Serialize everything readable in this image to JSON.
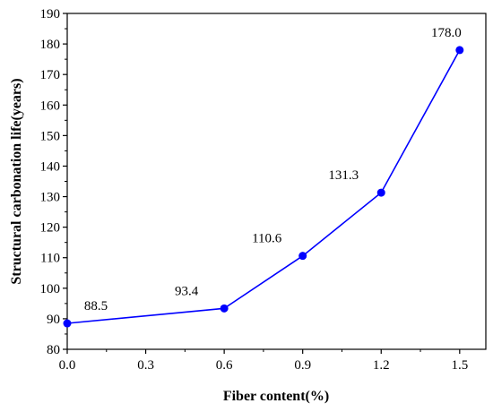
{
  "chart_data": {
    "type": "line",
    "title": "",
    "xlabel": "Fiber content(%)",
    "ylabel": "Structural carbonation life(years)",
    "x": [
      0.0,
      0.6,
      0.9,
      1.2,
      1.5
    ],
    "series": [
      {
        "values": [
          88.5,
          93.4,
          110.6,
          131.3,
          178.0
        ],
        "labels": [
          "88.5",
          "93.4",
          "110.6",
          "131.3",
          "178.0"
        ],
        "color": "#0000ff"
      }
    ],
    "xlim": [
      0.0,
      1.6
    ],
    "ylim": [
      80,
      190
    ],
    "xticks": [
      0.0,
      0.3,
      0.6,
      0.9,
      1.2,
      1.5
    ],
    "xtick_labels": [
      "0.0",
      "0.3",
      "0.6",
      "0.9",
      "1.2",
      "1.5"
    ],
    "yticks": [
      80,
      90,
      100,
      110,
      120,
      130,
      140,
      150,
      160,
      170,
      180,
      190
    ],
    "ytick_labels": [
      "80",
      "90",
      "100",
      "110",
      "120",
      "130",
      "140",
      "150",
      "160",
      "170",
      "180",
      "190"
    ],
    "grid": false,
    "legend": false
  }
}
